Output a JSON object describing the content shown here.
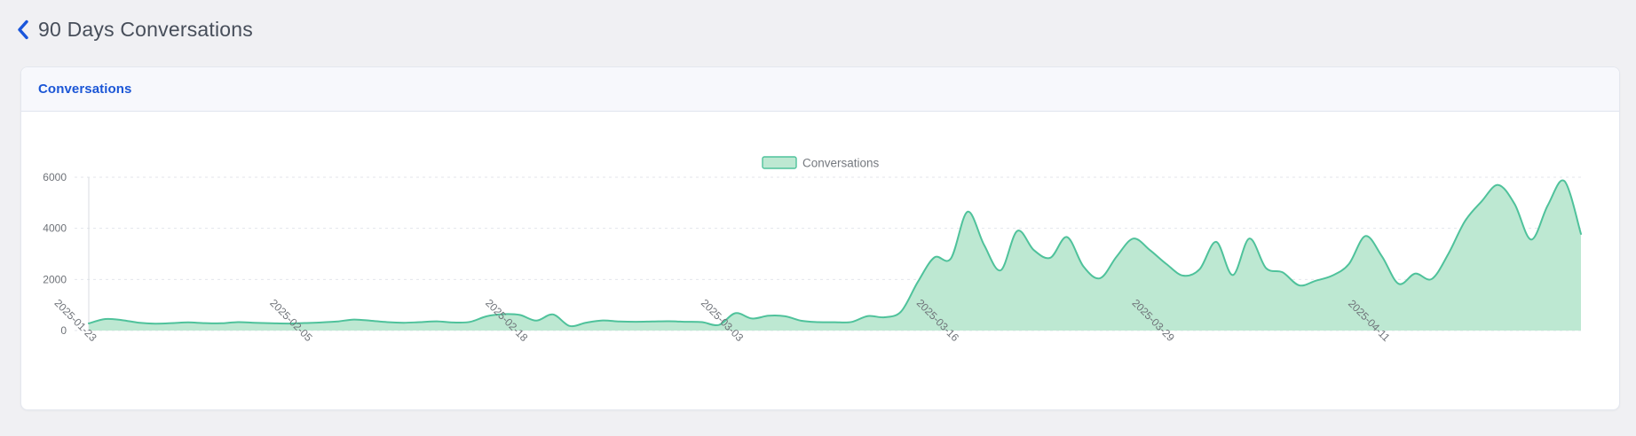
{
  "page": {
    "title": "90 Days Conversations",
    "background_color": "#f0f0f3",
    "back_icon_color": "#1a56db"
  },
  "card": {
    "header_label": "Conversations",
    "header_text_color": "#1b56d6",
    "header_bg_color": "#f7f8fc"
  },
  "chart_data": {
    "type": "area",
    "title": "",
    "legend": [
      {
        "label": "Conversations",
        "position": "top-center"
      }
    ],
    "grid": "horizontal dashed",
    "ylim": [
      0,
      6000
    ],
    "y_ticks": [
      0,
      2000,
      4000,
      6000
    ],
    "x_tick_indices": [
      0,
      13,
      26,
      39,
      52,
      65,
      78
    ],
    "x_tick_labels": [
      "2025-01-23",
      "2025-02-05",
      "2025-02-18",
      "2025-03-03",
      "2025-03-16",
      "2025-03-29",
      "2025-04-11"
    ],
    "x": [
      "2025-01-23",
      "2025-01-24",
      "2025-01-25",
      "2025-01-26",
      "2025-01-27",
      "2025-01-28",
      "2025-01-29",
      "2025-01-30",
      "2025-01-31",
      "2025-02-01",
      "2025-02-02",
      "2025-02-03",
      "2025-02-04",
      "2025-02-05",
      "2025-02-06",
      "2025-02-07",
      "2025-02-08",
      "2025-02-09",
      "2025-02-10",
      "2025-02-11",
      "2025-02-12",
      "2025-02-13",
      "2025-02-14",
      "2025-02-15",
      "2025-02-16",
      "2025-02-17",
      "2025-02-18",
      "2025-02-19",
      "2025-02-20",
      "2025-02-21",
      "2025-02-22",
      "2025-02-23",
      "2025-02-24",
      "2025-02-25",
      "2025-02-26",
      "2025-02-27",
      "2025-02-28",
      "2025-03-01",
      "2025-03-02",
      "2025-03-03",
      "2025-03-04",
      "2025-03-05",
      "2025-03-06",
      "2025-03-07",
      "2025-03-08",
      "2025-03-09",
      "2025-03-10",
      "2025-03-11",
      "2025-03-12",
      "2025-03-13",
      "2025-03-14",
      "2025-03-15",
      "2025-03-16",
      "2025-03-17",
      "2025-03-18",
      "2025-03-19",
      "2025-03-20",
      "2025-03-21",
      "2025-03-22",
      "2025-03-23",
      "2025-03-24",
      "2025-03-25",
      "2025-03-26",
      "2025-03-27",
      "2025-03-28",
      "2025-03-29",
      "2025-03-30",
      "2025-03-31",
      "2025-04-01",
      "2025-04-02",
      "2025-04-03",
      "2025-04-04",
      "2025-04-05",
      "2025-04-06",
      "2025-04-07",
      "2025-04-08",
      "2025-04-09",
      "2025-04-10",
      "2025-04-11",
      "2025-04-12",
      "2025-04-13",
      "2025-04-14",
      "2025-04-15",
      "2025-04-16",
      "2025-04-17",
      "2025-04-18",
      "2025-04-19",
      "2025-04-20",
      "2025-04-21",
      "2025-04-22",
      "2025-04-23"
    ],
    "series": [
      {
        "name": "Conversations",
        "line_color": "#4fc29b",
        "fill_color": "#bde8d2",
        "values": [
          280,
          450,
          410,
          310,
          270,
          290,
          320,
          290,
          285,
          330,
          305,
          285,
          275,
          295,
          315,
          355,
          430,
          385,
          330,
          305,
          330,
          360,
          315,
          340,
          560,
          640,
          610,
          390,
          630,
          180,
          310,
          395,
          355,
          345,
          355,
          365,
          345,
          330,
          220,
          680,
          470,
          580,
          560,
          380,
          330,
          325,
          335,
          570,
          520,
          750,
          1900,
          2860,
          2820,
          4650,
          3350,
          2360,
          3900,
          3150,
          2850,
          3660,
          2500,
          2050,
          2900,
          3600,
          3150,
          2600,
          2150,
          2400,
          3470,
          2170,
          3600,
          2450,
          2280,
          1770,
          1950,
          2150,
          2600,
          3700,
          2900,
          1830,
          2230,
          2020,
          3000,
          4280,
          5050,
          5700,
          4950,
          3560,
          4900,
          5850,
          3780
        ]
      }
    ],
    "axis_label_color": "#6e7278",
    "gridline_color": "#e3e6eb",
    "axis_line_color": "#d8dbe1",
    "legend_text_color": "#75797f"
  }
}
